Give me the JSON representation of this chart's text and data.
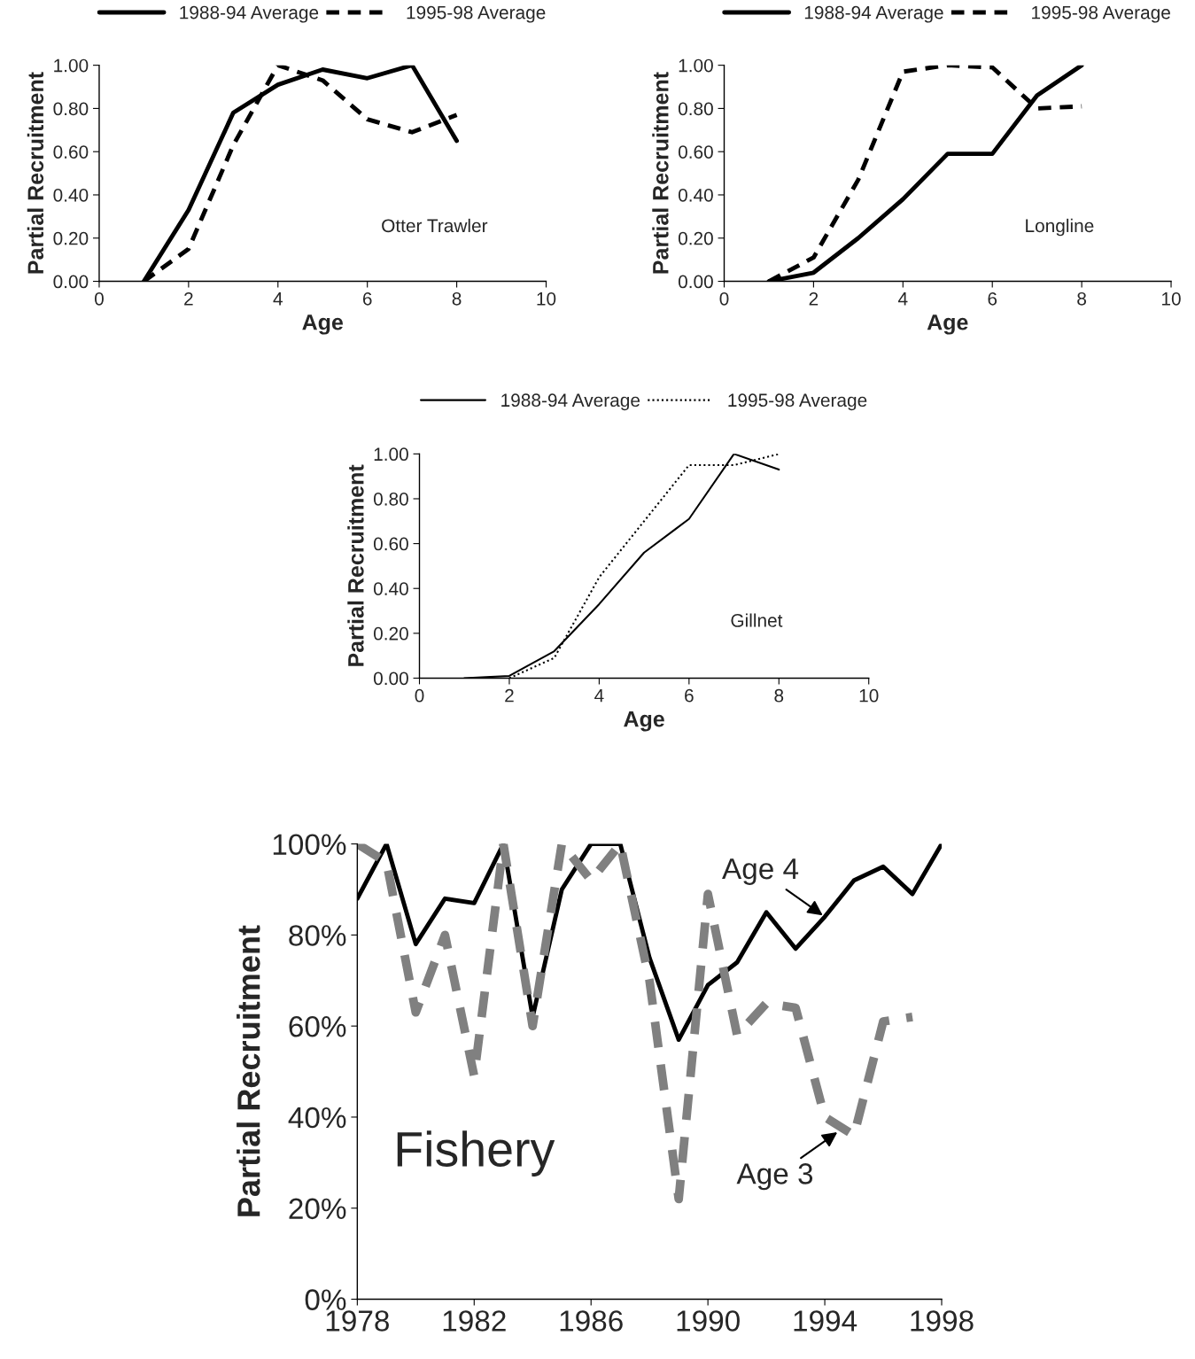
{
  "chart_data": [
    {
      "type": "line",
      "xlabel": "Age",
      "ylabel": "Partial Recruitment",
      "x": [
        1,
        2,
        3,
        4,
        5,
        6,
        7,
        8
      ],
      "xlim": [
        0,
        10
      ],
      "xticks": [
        0,
        2,
        4,
        6,
        8,
        10
      ],
      "ylim": [
        0,
        1
      ],
      "yticks": [
        {
          "value": 0,
          "label": "0.00"
        },
        {
          "value": 0.2,
          "label": "0.20"
        },
        {
          "value": 0.4,
          "label": "0.40"
        },
        {
          "value": 0.6,
          "label": "0.60"
        },
        {
          "value": 0.8,
          "label": "0.80"
        },
        {
          "value": 1,
          "label": "1.00"
        }
      ],
      "legend": "top",
      "grid": false,
      "marker": "none",
      "annotations": [
        "Otter Trawler"
      ],
      "series": [
        {
          "name": "1988-94 Average",
          "color": "#000000",
          "line_style": "solid",
          "values": [
            0.0,
            0.33,
            0.78,
            0.91,
            0.98,
            0.94,
            1.0,
            0.65
          ]
        },
        {
          "name": "1995-98 Average",
          "color": "#000000",
          "line_style": "dashed",
          "values": [
            0.0,
            0.15,
            0.63,
            1.0,
            0.93,
            0.75,
            0.69,
            0.77
          ]
        }
      ]
    },
    {
      "type": "line",
      "xlabel": "Age",
      "ylabel": "Partial Recruitment",
      "x": [
        1,
        2,
        3,
        4,
        5,
        6,
        7,
        8
      ],
      "xlim": [
        0,
        10
      ],
      "xticks": [
        0,
        2,
        4,
        6,
        8,
        10
      ],
      "ylim": [
        0,
        1
      ],
      "yticks": [
        {
          "value": 0,
          "label": "0.00"
        },
        {
          "value": 0.2,
          "label": "0.20"
        },
        {
          "value": 0.4,
          "label": "0.40"
        },
        {
          "value": 0.6,
          "label": "0.60"
        },
        {
          "value": 0.8,
          "label": "0.80"
        },
        {
          "value": 1,
          "label": "1.00"
        }
      ],
      "legend": "top",
      "grid": false,
      "marker": "none",
      "annotations": [
        "Longline"
      ],
      "series": [
        {
          "name": "1988-94 Average",
          "color": "#000000",
          "line_style": "solid",
          "values": [
            0.0,
            0.04,
            0.2,
            0.38,
            0.59,
            0.59,
            0.86,
            1.0
          ]
        },
        {
          "name": "1995-98 Average",
          "color": "#000000",
          "line_style": "dashed",
          "values": [
            0.0,
            0.11,
            0.47,
            0.97,
            1.0,
            0.99,
            0.8,
            0.81
          ]
        }
      ]
    },
    {
      "type": "line",
      "xlabel": "Age",
      "ylabel": "Partial Recruitment",
      "x": [
        1,
        2,
        3,
        4,
        5,
        6,
        7,
        8
      ],
      "xlim": [
        0,
        10
      ],
      "xticks": [
        0,
        2,
        4,
        6,
        8,
        10
      ],
      "ylim": [
        0,
        1
      ],
      "yticks": [
        {
          "value": 0,
          "label": "0.00"
        },
        {
          "value": 0.2,
          "label": "0.20"
        },
        {
          "value": 0.4,
          "label": "0.40"
        },
        {
          "value": 0.6,
          "label": "0.60"
        },
        {
          "value": 0.8,
          "label": "0.80"
        },
        {
          "value": 1,
          "label": "1.00"
        }
      ],
      "legend": "top",
      "grid": false,
      "marker": "none",
      "annotations": [
        "Gillnet"
      ],
      "series": [
        {
          "name": "1988-94 Average",
          "color": "#000000",
          "line_style": "solid",
          "values": [
            0.0,
            0.01,
            0.12,
            0.33,
            0.56,
            0.71,
            1.0,
            0.93
          ]
        },
        {
          "name": "1995-98 Average",
          "color": "#000000",
          "line_style": "dotted",
          "values": [
            null,
            0.0,
            0.09,
            0.45,
            0.7,
            0.95,
            0.95,
            1.0
          ]
        }
      ]
    },
    {
      "type": "line",
      "ylabel": "Partial Recruitment",
      "x": [
        1978,
        1979,
        1980,
        1981,
        1982,
        1983,
        1984,
        1985,
        1986,
        1987,
        1988,
        1989,
        1990,
        1991,
        1992,
        1993,
        1994,
        1995,
        1996,
        1997,
        1998
      ],
      "xlim": [
        1978,
        1998
      ],
      "xticks": [
        1978,
        1982,
        1986,
        1990,
        1994,
        1998
      ],
      "ylim": [
        0,
        100
      ],
      "yticks": [
        {
          "value": 0,
          "label": "0%"
        },
        {
          "value": 20,
          "label": "20%"
        },
        {
          "value": 40,
          "label": "40%"
        },
        {
          "value": 60,
          "label": "60%"
        },
        {
          "value": 80,
          "label": "80%"
        },
        {
          "value": 100,
          "label": "100%"
        }
      ],
      "grid": false,
      "marker": "none",
      "annotations": [
        "Fishery",
        {
          "text": "Age 4",
          "x": 1994,
          "y": 84
        },
        {
          "text": "Age 3",
          "x": 1994.5,
          "y": 37
        }
      ],
      "series": [
        {
          "color": "#000000",
          "line_style": "solid",
          "values": [
            88,
            100,
            78,
            88,
            87,
            100,
            62,
            90,
            100,
            100,
            75,
            57,
            69,
            74,
            85,
            77,
            84,
            92,
            95,
            89,
            100
          ]
        },
        {
          "color": "#808080",
          "line_style": "dashed",
          "values": [
            100,
            96,
            63,
            80,
            49,
            100,
            60,
            100,
            92,
            100,
            70,
            22,
            89,
            58,
            65,
            64,
            40,
            36,
            61,
            62,
            null
          ]
        }
      ]
    }
  ]
}
